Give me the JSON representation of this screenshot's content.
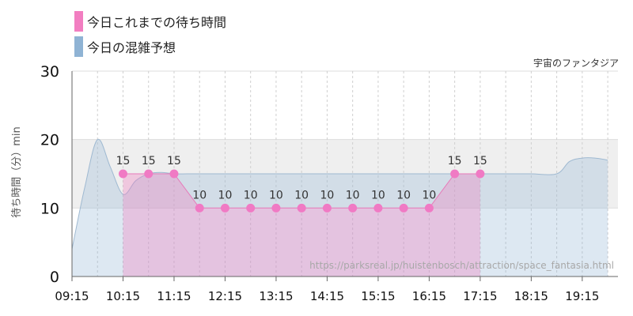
{
  "chart_data": {
    "type": "area",
    "attraction_name": "宇宙のファンタジア",
    "ylabel": "待ち時間（分）min",
    "source_url": "https://parksreal.jp/huistenbosch/attraction/space_fantasia.html",
    "ylim": [
      0,
      30
    ],
    "y_ticks": [
      "0",
      "10",
      "20",
      "30"
    ],
    "x_ticks": [
      "09:15",
      "10:15",
      "11:15",
      "12:15",
      "13:15",
      "14:15",
      "15:15",
      "16:15",
      "17:15",
      "18:15",
      "19:15"
    ],
    "background_band": {
      "from": 10,
      "to": 20
    },
    "series": [
      {
        "name": "今日これまでの待ち時間",
        "color": "#f27ec1",
        "x": [
          "10:15",
          "10:45",
          "11:15",
          "11:45",
          "12:15",
          "12:45",
          "13:15",
          "13:45",
          "14:15",
          "14:45",
          "15:15",
          "15:45",
          "16:15",
          "16:45",
          "17:15"
        ],
        "values": [
          15,
          15,
          15,
          10,
          10,
          10,
          10,
          10,
          10,
          10,
          10,
          10,
          10,
          15,
          15
        ],
        "labels": [
          "15",
          "15",
          "15",
          "10",
          "10",
          "10",
          "10",
          "10",
          "10",
          "10",
          "10",
          "10",
          "10",
          "15",
          "15"
        ]
      },
      {
        "name": "今日の混雑予想",
        "color": "#8fb3d4",
        "x": [
          "09:15",
          "09:30",
          "09:45",
          "10:00",
          "10:15",
          "10:30",
          "10:45",
          "11:00",
          "11:15",
          "11:30",
          "11:45",
          "12:00",
          "12:15",
          "12:45",
          "13:15",
          "13:45",
          "14:15",
          "14:45",
          "15:15",
          "15:45",
          "16:15",
          "16:45",
          "17:15",
          "17:45",
          "18:15",
          "18:45",
          "19:00",
          "19:15",
          "19:30",
          "19:45"
        ],
        "values": [
          4,
          13,
          20,
          16,
          12,
          14,
          15,
          15.2,
          15,
          15,
          15,
          15,
          15,
          15,
          15,
          15,
          15,
          15,
          15,
          15,
          15,
          15,
          15,
          15,
          15,
          15,
          16.8,
          17.3,
          17.3,
          17
        ]
      }
    ]
  }
}
